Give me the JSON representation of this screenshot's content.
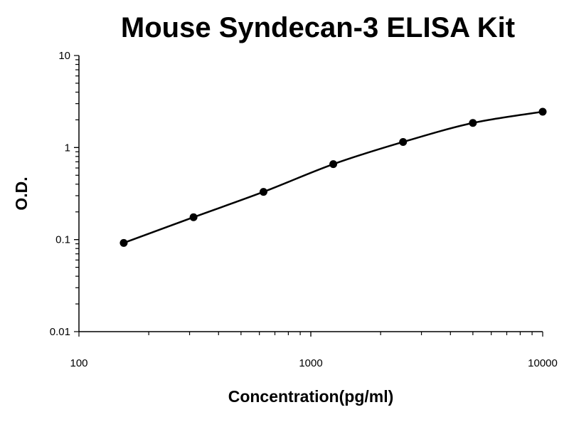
{
  "chart_data": {
    "type": "line",
    "title": "Mouse Syndecan-3 ELISA Kit",
    "xlabel": "Concentration(pg/ml)",
    "ylabel": "O.D.",
    "x_scale": "log",
    "y_scale": "log",
    "xlim": [
      100,
      10000
    ],
    "ylim": [
      0.01,
      10
    ],
    "x_ticks": [
      "100",
      "1000",
      "10000"
    ],
    "y_ticks": [
      "0.01",
      "0.1",
      "1",
      "10"
    ],
    "grid": false,
    "series": [
      {
        "x": [
          156,
          312,
          625,
          1250,
          2500,
          5000,
          10000
        ],
        "y": [
          0.092,
          0.175,
          0.33,
          0.66,
          1.15,
          1.85,
          2.45
        ]
      }
    ]
  }
}
